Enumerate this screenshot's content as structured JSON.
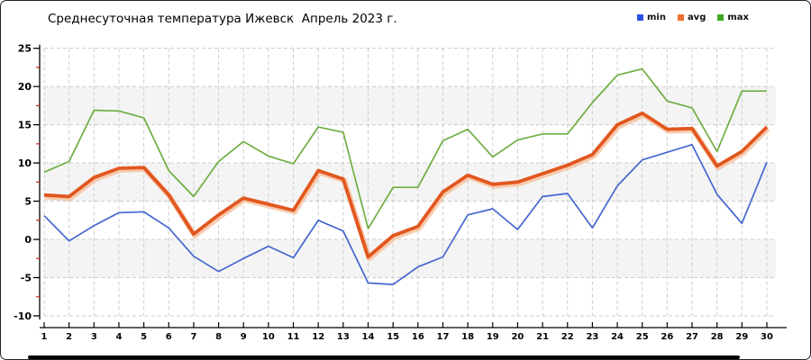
{
  "title": "Среднесуточная температура Ижевск  Апрель 2023 г.",
  "legend": {
    "items": [
      {
        "id": "min",
        "label": "min",
        "color": "#2b50e0"
      },
      {
        "id": "avg",
        "label": "avg",
        "color": "#ee6f2e"
      },
      {
        "id": "max",
        "label": "max",
        "color": "#3fa922"
      }
    ]
  },
  "axes": {
    "y_tick_labels": [
      "25",
      "20",
      "15",
      "10",
      "5",
      "0",
      "-5",
      "-10"
    ],
    "y_major": [
      25,
      20,
      15,
      10,
      5,
      0,
      -5,
      -10
    ],
    "y_minor": [
      22.5,
      17.5,
      12.5,
      7.5,
      2.5,
      -2.5,
      -7.5
    ],
    "x_tick_labels": [
      "1",
      "2",
      "3",
      "4",
      "5",
      "6",
      "7",
      "8",
      "9",
      "10",
      "11",
      "12",
      "13",
      "14",
      "15",
      "16",
      "17",
      "18",
      "19",
      "20",
      "21",
      "22",
      "23",
      "24",
      "25",
      "26",
      "27",
      "28",
      "29",
      "30"
    ],
    "minor_tick_color": "#cc2222",
    "axis_color": "#000000",
    "gridline_color": "#cccccc",
    "band_color": "#f4f4f4",
    "band_ranges": [
      [
        20,
        15
      ],
      [
        10,
        5
      ],
      [
        0,
        -5
      ]
    ]
  },
  "chart_data": {
    "type": "line",
    "title": "Среднесуточная температура Ижевск  Апрель 2023 г.",
    "xlabel": "",
    "ylabel": "",
    "x": [
      1,
      2,
      3,
      4,
      5,
      6,
      7,
      8,
      9,
      10,
      11,
      12,
      13,
      14,
      15,
      16,
      17,
      18,
      19,
      20,
      21,
      22,
      23,
      24,
      25,
      26,
      27,
      28,
      29,
      30
    ],
    "ylim": [
      -10,
      25
    ],
    "grid": true,
    "legend_position": "top-right",
    "series": [
      {
        "name": "min",
        "color": "#4466cf",
        "values": [
          3.1,
          -0.2,
          1.8,
          3.5,
          3.6,
          1.5,
          -2.2,
          -4.2,
          -2.5,
          -0.9,
          -2.4,
          2.5,
          1.1,
          -5.7,
          -5.9,
          -3.6,
          -2.3,
          3.2,
          4.0,
          1.3,
          5.6,
          6.0,
          1.5,
          7.0,
          10.4,
          11.4,
          12.4,
          5.9,
          2.1,
          10.1
        ]
      },
      {
        "name": "avg",
        "color": "#e2571f",
        "halo_color": "#f6c2a0",
        "values": [
          5.8,
          5.6,
          8.1,
          9.3,
          9.4,
          5.8,
          0.7,
          3.2,
          5.4,
          4.6,
          3.8,
          9.0,
          7.9,
          -2.3,
          0.5,
          1.7,
          6.2,
          8.4,
          7.2,
          7.5,
          8.6,
          9.7,
          11.1,
          15.0,
          16.5,
          14.4,
          14.5,
          9.6,
          11.5,
          14.7
        ]
      },
      {
        "name": "max",
        "color": "#6fae43",
        "values": [
          8.8,
          10.2,
          16.9,
          16.8,
          15.9,
          9.0,
          5.6,
          10.2,
          12.8,
          10.9,
          9.9,
          14.7,
          14.0,
          1.4,
          6.8,
          6.8,
          12.9,
          14.4,
          10.8,
          13.0,
          13.8,
          13.8,
          17.9,
          21.5,
          22.3,
          18.1,
          17.2,
          11.5,
          19.4,
          19.4
        ]
      }
    ]
  }
}
